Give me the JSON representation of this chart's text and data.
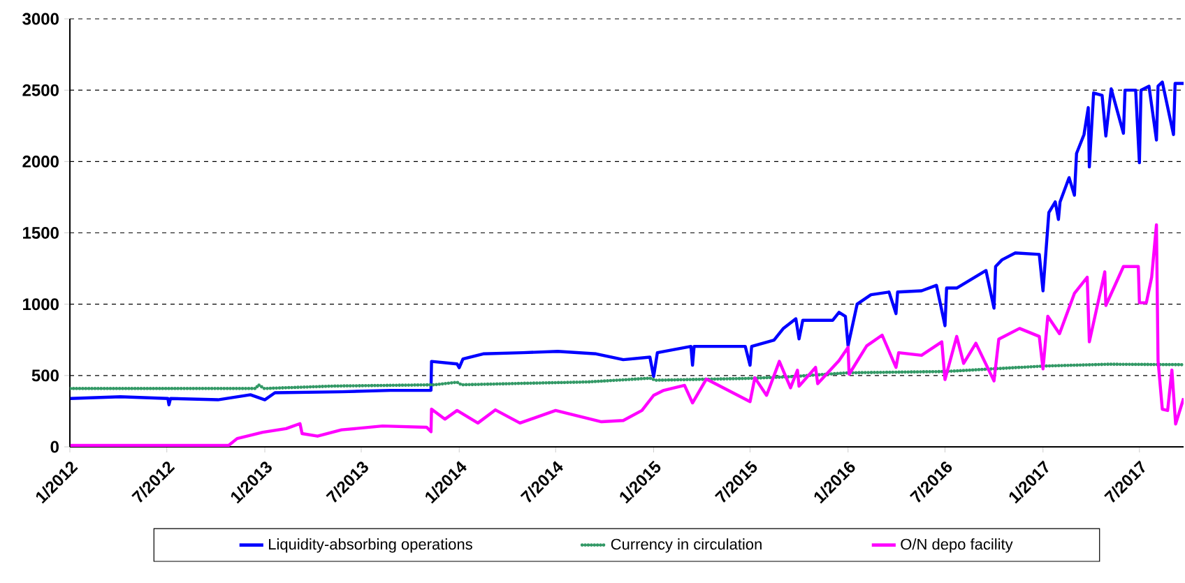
{
  "chart_data": {
    "type": "line",
    "xlim": [
      "2012-01-01",
      "2017-09-22"
    ],
    "xticks": [
      {
        "value": "2012-01-01",
        "label": "1/2012"
      },
      {
        "value": "2012-07-01",
        "label": "7/2012"
      },
      {
        "value": "2013-01-01",
        "label": "1/2013"
      },
      {
        "value": "2013-07-01",
        "label": "7/2013"
      },
      {
        "value": "2014-01-01",
        "label": "1/2014"
      },
      {
        "value": "2014-07-01",
        "label": "7/2014"
      },
      {
        "value": "2015-01-01",
        "label": "1/2015"
      },
      {
        "value": "2015-07-01",
        "label": "7/2015"
      },
      {
        "value": "2016-01-01",
        "label": "1/2016"
      },
      {
        "value": "2016-07-01",
        "label": "7/2016"
      },
      {
        "value": "2017-01-01",
        "label": "1/2017"
      },
      {
        "value": "2017-07-01",
        "label": "7/2017"
      }
    ],
    "ylim": [
      0,
      3000
    ],
    "yticks": [
      0,
      500,
      1000,
      1500,
      2000,
      2500,
      3000
    ],
    "grid": "y",
    "legend": "bottom",
    "line_style": "solid",
    "series": [
      {
        "name": "Liquidity-absorbing operations",
        "color": "#0000ff",
        "x": [
          "2012-01-02",
          "2012-04-05",
          "2012-07-03",
          "2012-07-05",
          "2012-07-08",
          "2012-10-05",
          "2012-12-05",
          "2013-01-01",
          "2013-01-20",
          "2013-05-25",
          "2013-08-25",
          "2013-11-09",
          "2013-11-10",
          "2013-12-28",
          "2014-01-01",
          "2014-01-08",
          "2014-02-15",
          "2014-04-30",
          "2014-07-05",
          "2014-09-15",
          "2014-11-05",
          "2014-12-25",
          "2015-01-01",
          "2015-01-08",
          "2015-03-12",
          "2015-03-15",
          "2015-03-18",
          "2015-06-22",
          "2015-07-01",
          "2015-07-04",
          "2015-08-15",
          "2015-09-01",
          "2015-09-25",
          "2015-10-01",
          "2015-10-08",
          "2015-12-03",
          "2015-12-15",
          "2015-12-27",
          "2016-01-01",
          "2016-01-18",
          "2016-02-13",
          "2016-03-18",
          "2016-03-31",
          "2016-04-03",
          "2016-05-18",
          "2016-06-15",
          "2016-07-01",
          "2016-07-04",
          "2016-07-23",
          "2016-09-16",
          "2016-10-01",
          "2016-10-04",
          "2016-10-16",
          "2016-11-10",
          "2016-12-25",
          "2017-01-01",
          "2017-01-12",
          "2017-01-24",
          "2017-01-30",
          "2017-02-02",
          "2017-02-19",
          "2017-03-01",
          "2017-03-05",
          "2017-03-19",
          "2017-03-27",
          "2017-03-29",
          "2017-04-06",
          "2017-04-22",
          "2017-04-29",
          "2017-05-09",
          "2017-06-01",
          "2017-06-04",
          "2017-06-24",
          "2017-07-01",
          "2017-07-04",
          "2017-07-19",
          "2017-08-02",
          "2017-08-05",
          "2017-08-13",
          "2017-09-03",
          "2017-09-06",
          "2017-09-22"
        ],
        "values": [
          339,
          351,
          339,
          295,
          339,
          330,
          365,
          330,
          379,
          386,
          396,
          396,
          599,
          581,
          555,
          616,
          652,
          660,
          669,
          652,
          611,
          629,
          493,
          660,
          704,
          572,
          704,
          704,
          572,
          704,
          748,
          828,
          898,
          757,
          887,
          887,
          943,
          915,
          708,
          1000,
          1066,
          1085,
          934,
          1085,
          1094,
          1132,
          849,
          1113,
          1113,
          1236,
          972,
          1264,
          1311,
          1359,
          1349,
          1094,
          1642,
          1717,
          1594,
          1717,
          1887,
          1764,
          2057,
          2189,
          2378,
          1962,
          2481,
          2463,
          2179,
          2510,
          2198,
          2500,
          2500,
          1991,
          2500,
          2528,
          2151,
          2528,
          2557,
          2189,
          2547,
          2547
        ]
      },
      {
        "name": "Currency in circulation",
        "color": "#339966",
        "line_style": "dotted",
        "x": [
          "2012-01-02",
          "2012-12-15",
          "2012-12-20",
          "2012-12-31",
          "2013-05-10",
          "2013-11-15",
          "2013-12-28",
          "2014-01-05",
          "2014-05-01",
          "2014-09-01",
          "2014-12-25",
          "2015-01-05",
          "2015-07-01",
          "2015-09-12",
          "2016-01-01",
          "2016-07-01",
          "2017-01-01",
          "2017-05-05",
          "2017-09-22"
        ],
        "values": [
          409,
          409,
          435,
          409,
          426,
          435,
          453,
          435,
          445,
          455,
          481,
          467,
          480,
          491,
          519,
          528,
          566,
          579,
          576
        ]
      },
      {
        "name": "O/N depo facility",
        "color": "#ff00ff",
        "x": [
          "2012-01-02",
          "2012-10-25",
          "2012-11-10",
          "2012-12-28",
          "2013-02-10",
          "2013-03-08",
          "2013-03-12",
          "2013-04-10",
          "2013-05-25",
          "2013-08-10",
          "2013-11-01",
          "2013-11-09",
          "2013-11-10",
          "2013-12-05",
          "2013-12-28",
          "2014-02-05",
          "2014-03-10",
          "2014-04-25",
          "2014-07-01",
          "2014-09-25",
          "2014-11-05",
          "2014-12-10",
          "2015-01-01",
          "2015-01-20",
          "2015-02-28",
          "2015-03-15",
          "2015-04-10",
          "2015-07-01",
          "2015-07-10",
          "2015-08-01",
          "2015-08-25",
          "2015-09-15",
          "2015-09-28",
          "2015-10-01",
          "2015-11-01",
          "2015-11-05",
          "2015-12-15",
          "2016-01-01",
          "2016-01-03",
          "2016-02-05",
          "2016-03-05",
          "2016-03-31",
          "2016-04-05",
          "2016-05-18",
          "2016-06-25",
          "2016-07-01",
          "2016-07-23",
          "2016-08-05",
          "2016-08-28",
          "2016-10-01",
          "2016-10-10",
          "2016-11-18",
          "2016-12-25",
          "2017-01-01",
          "2017-01-10",
          "2017-02-01",
          "2017-03-01",
          "2017-03-25",
          "2017-03-29",
          "2017-04-27",
          "2017-04-29",
          "2017-06-01",
          "2017-06-29",
          "2017-07-01",
          "2017-07-14",
          "2017-07-24",
          "2017-08-02",
          "2017-08-05",
          "2017-08-13",
          "2017-08-23",
          "2017-08-31",
          "2017-09-07",
          "2017-09-22"
        ],
        "values": [
          10,
          10,
          58,
          102,
          128,
          163,
          93,
          75,
          119,
          146,
          137,
          106,
          264,
          194,
          255,
          167,
          259,
          167,
          255,
          176,
          185,
          255,
          361,
          396,
          431,
          308,
          475,
          317,
          484,
          361,
          599,
          414,
          537,
          425,
          557,
          443,
          604,
          698,
          509,
          708,
          783,
          557,
          660,
          642,
          736,
          472,
          774,
          585,
          726,
          462,
          755,
          830,
          774,
          547,
          915,
          793,
          1076,
          1189,
          736,
          1227,
          991,
          1264,
          1264,
          1010,
          1010,
          1189,
          1557,
          604,
          264,
          255,
          538,
          160,
          340
        ]
      }
    ]
  }
}
